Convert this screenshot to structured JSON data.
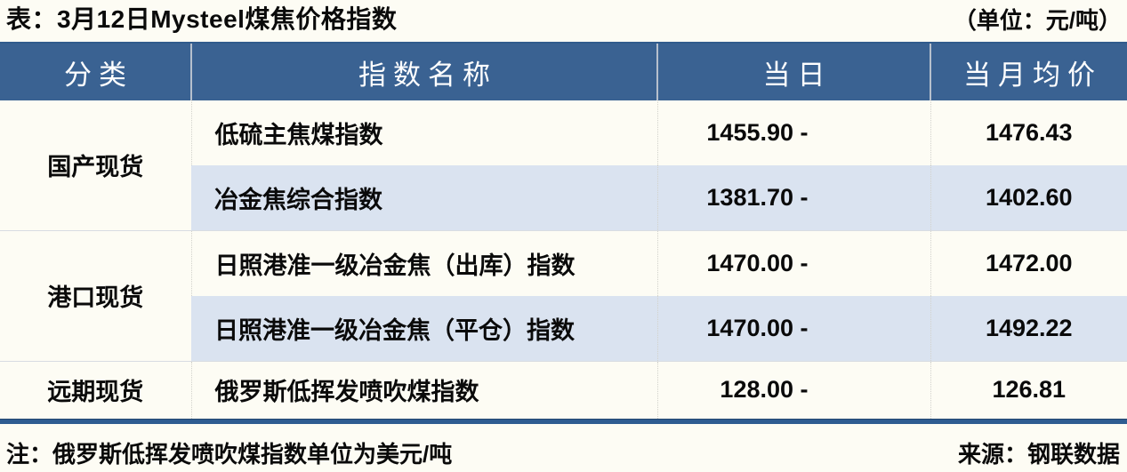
{
  "title": "表：3月12日Mysteel煤焦价格指数",
  "unit_label": "（单位：元/吨）",
  "table": {
    "headers": {
      "category": "分类",
      "name": "指数名称",
      "daily": "当日",
      "monthly": "当月均价"
    },
    "groups": [
      {
        "category": "国产现货",
        "rows": [
          {
            "name": "低硫主焦煤指数",
            "daily": "1455.90 -",
            "monthly": "1476.43"
          },
          {
            "name": "冶金焦综合指数",
            "daily": "1381.70 -",
            "monthly": "1402.60"
          }
        ]
      },
      {
        "category": "港口现货",
        "rows": [
          {
            "name": "日照港准一级冶金焦（出库）指数",
            "daily": "1470.00 -",
            "monthly": "1472.00"
          },
          {
            "name": "日照港准一级冶金焦（平仓）指数",
            "daily": "1470.00 -",
            "monthly": "1492.22"
          }
        ]
      },
      {
        "category": "远期现货",
        "rows": [
          {
            "name": "俄罗斯低挥发喷吹煤指数",
            "daily": "128.00 -",
            "monthly": "126.81"
          }
        ]
      }
    ]
  },
  "footer": {
    "note": "注：俄罗斯低挥发喷吹煤指数单位为美元/吨",
    "source": "来源：钢联数据"
  },
  "colors": {
    "header_bg": "#3A6292",
    "row_alt_bg": "#DAE3F0",
    "page_bg": "#FDFCF4",
    "bottom_rule": "#2E5C91"
  }
}
